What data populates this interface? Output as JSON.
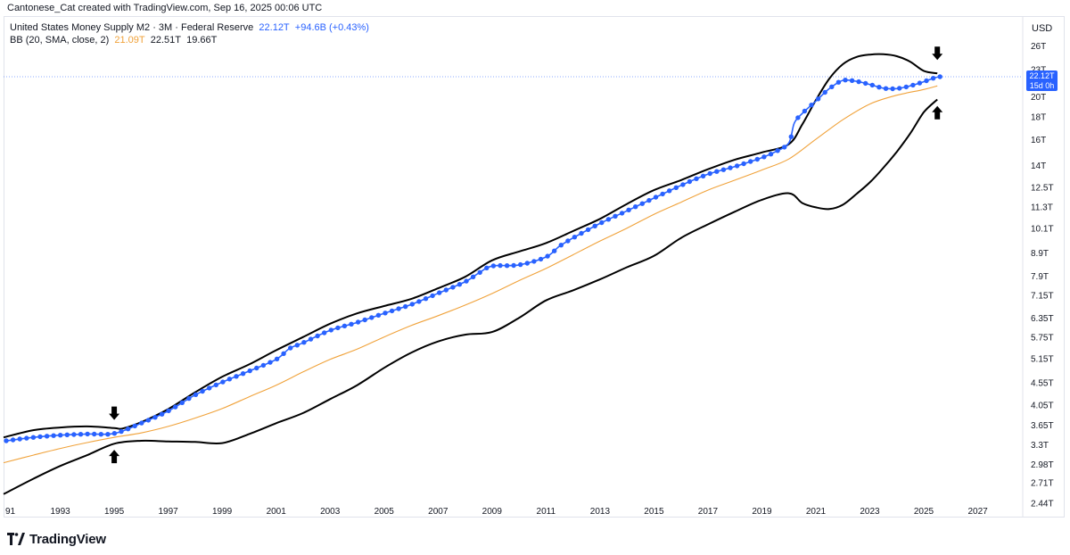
{
  "header": {
    "attribution": "Cantonese_Cat created with TradingView.com, Sep 16, 2025 00:06 UTC"
  },
  "legend": {
    "symbol": "United States Money Supply M2 · 3M · Federal Reserve",
    "last_value": "22.12T",
    "change": "+94.6B (+0.43%)",
    "indicator_name": "BB (20, SMA, close, 2)",
    "basis": "21.09T",
    "upper": "22.51T",
    "lower": "19.66T"
  },
  "price_axis": {
    "currency": "USD",
    "last_price_label": "22.12T",
    "countdown": "15d 0h"
  },
  "brand": {
    "name": "TradingView"
  },
  "colors": {
    "series": "#2962ff",
    "basis": "#f0a23a",
    "bands": "#000000",
    "price_line": "#2962ff"
  },
  "chart_data": {
    "type": "line",
    "log_scale": true,
    "grid": false,
    "xlim": [
      1990.9,
      2028.6
    ],
    "ylim": [
      2.28,
      30.0
    ],
    "x_ticks": [
      "91",
      "1993",
      "1995",
      "1997",
      "1999",
      "2001",
      "2003",
      "2005",
      "2007",
      "2009",
      "2011",
      "2013",
      "2015",
      "2017",
      "2019",
      "2021",
      "2023",
      "2025",
      "2027"
    ],
    "x_tick_years": [
      1991,
      1993,
      1995,
      1997,
      1999,
      2001,
      2003,
      2005,
      2007,
      2009,
      2011,
      2013,
      2015,
      2017,
      2019,
      2021,
      2023,
      2025,
      2027
    ],
    "y_ticks": [
      "26T",
      "23T",
      "20T",
      "18T",
      "16T",
      "14T",
      "12.5T",
      "11.3T",
      "10.1T",
      "8.9T",
      "7.9T",
      "7.15T",
      "6.35T",
      "5.75T",
      "5.15T",
      "4.55T",
      "4.05T",
      "3.65T",
      "3.3T",
      "2.98T",
      "2.71T",
      "2.44T"
    ],
    "y_tick_values": [
      26,
      23,
      20,
      18,
      16,
      14,
      12.5,
      11.3,
      10.1,
      8.9,
      7.9,
      7.15,
      6.35,
      5.75,
      5.15,
      4.55,
      4.05,
      3.65,
      3.3,
      2.98,
      2.71,
      2.44
    ],
    "last_value": 22.12,
    "series": [
      {
        "name": "United States Money Supply M2",
        "role": "price",
        "points": [
          [
            1991.0,
            3.36
          ],
          [
            1992.0,
            3.42
          ],
          [
            1993.0,
            3.46
          ],
          [
            1994.0,
            3.48
          ],
          [
            1995.0,
            3.49
          ],
          [
            1996.0,
            3.68
          ],
          [
            1997.0,
            3.92
          ],
          [
            1998.0,
            4.26
          ],
          [
            1999.0,
            4.55
          ],
          [
            2000.0,
            4.82
          ],
          [
            2001.0,
            5.12
          ],
          [
            2001.5,
            5.42
          ],
          [
            2002.0,
            5.58
          ],
          [
            2003.0,
            5.95
          ],
          [
            2004.0,
            6.2
          ],
          [
            2005.0,
            6.5
          ],
          [
            2006.0,
            6.8
          ],
          [
            2007.0,
            7.21
          ],
          [
            2008.0,
            7.65
          ],
          [
            2008.5,
            8.0
          ],
          [
            2009.0,
            8.3
          ],
          [
            2010.0,
            8.35
          ],
          [
            2011.0,
            8.7
          ],
          [
            2011.5,
            9.2
          ],
          [
            2012.0,
            9.6
          ],
          [
            2013.0,
            10.35
          ],
          [
            2014.0,
            11.05
          ],
          [
            2015.0,
            11.8
          ],
          [
            2016.0,
            12.6
          ],
          [
            2017.0,
            13.35
          ],
          [
            2018.0,
            13.9
          ],
          [
            2019.0,
            14.55
          ],
          [
            2019.5,
            15.0
          ],
          [
            2020.0,
            15.7
          ],
          [
            2020.2,
            17.4
          ],
          [
            2020.5,
            18.3
          ],
          [
            2021.0,
            19.5
          ],
          [
            2021.5,
            20.8
          ],
          [
            2022.0,
            21.7
          ],
          [
            2022.5,
            21.6
          ],
          [
            2023.0,
            21.25
          ],
          [
            2023.5,
            20.85
          ],
          [
            2024.0,
            20.8
          ],
          [
            2024.5,
            21.1
          ],
          [
            2025.0,
            21.55
          ],
          [
            2025.4,
            22.0
          ],
          [
            2025.6,
            22.12
          ]
        ]
      },
      {
        "name": "Upper",
        "role": "upper",
        "points": [
          [
            1990.9,
            3.42
          ],
          [
            1992.0,
            3.55
          ],
          [
            1993.0,
            3.6
          ],
          [
            1994.0,
            3.62
          ],
          [
            1995.0,
            3.59
          ],
          [
            1995.3,
            3.58
          ],
          [
            1996.0,
            3.7
          ],
          [
            1997.0,
            3.96
          ],
          [
            1998.0,
            4.32
          ],
          [
            1999.0,
            4.68
          ],
          [
            2000.0,
            4.99
          ],
          [
            2001.0,
            5.37
          ],
          [
            2002.0,
            5.75
          ],
          [
            2003.0,
            6.16
          ],
          [
            2004.0,
            6.5
          ],
          [
            2005.0,
            6.75
          ],
          [
            2006.0,
            7.0
          ],
          [
            2007.0,
            7.4
          ],
          [
            2008.0,
            7.85
          ],
          [
            2009.0,
            8.55
          ],
          [
            2010.0,
            8.95
          ],
          [
            2011.0,
            9.35
          ],
          [
            2012.0,
            9.95
          ],
          [
            2013.0,
            10.6
          ],
          [
            2014.0,
            11.45
          ],
          [
            2015.0,
            12.3
          ],
          [
            2016.0,
            12.95
          ],
          [
            2017.0,
            13.7
          ],
          [
            2018.0,
            14.4
          ],
          [
            2019.0,
            14.95
          ],
          [
            2020.0,
            15.6
          ],
          [
            2020.5,
            17.3
          ],
          [
            2021.0,
            19.6
          ],
          [
            2021.5,
            21.9
          ],
          [
            2022.0,
            23.6
          ],
          [
            2022.5,
            24.5
          ],
          [
            2023.0,
            24.8
          ],
          [
            2023.5,
            24.85
          ],
          [
            2024.0,
            24.6
          ],
          [
            2024.5,
            23.9
          ],
          [
            2025.0,
            22.8
          ],
          [
            2025.5,
            22.51
          ]
        ]
      },
      {
        "name": "Basis",
        "role": "basis",
        "points": [
          [
            1990.9,
            3.0
          ],
          [
            1992.0,
            3.12
          ],
          [
            1993.0,
            3.23
          ],
          [
            1994.0,
            3.33
          ],
          [
            1995.0,
            3.42
          ],
          [
            1996.0,
            3.5
          ],
          [
            1997.0,
            3.62
          ],
          [
            1998.0,
            3.78
          ],
          [
            1999.0,
            3.97
          ],
          [
            2000.0,
            4.22
          ],
          [
            2001.0,
            4.48
          ],
          [
            2002.0,
            4.8
          ],
          [
            2003.0,
            5.12
          ],
          [
            2004.0,
            5.4
          ],
          [
            2005.0,
            5.75
          ],
          [
            2006.0,
            6.1
          ],
          [
            2007.0,
            6.42
          ],
          [
            2008.0,
            6.78
          ],
          [
            2009.0,
            7.2
          ],
          [
            2010.0,
            7.7
          ],
          [
            2011.0,
            8.2
          ],
          [
            2012.0,
            8.8
          ],
          [
            2013.0,
            9.45
          ],
          [
            2014.0,
            10.1
          ],
          [
            2015.0,
            10.85
          ],
          [
            2016.0,
            11.55
          ],
          [
            2017.0,
            12.3
          ],
          [
            2018.0,
            12.95
          ],
          [
            2019.0,
            13.65
          ],
          [
            2020.0,
            14.45
          ],
          [
            2021.0,
            16.0
          ],
          [
            2022.0,
            17.7
          ],
          [
            2023.0,
            19.2
          ],
          [
            2024.0,
            20.1
          ],
          [
            2025.0,
            20.7
          ],
          [
            2025.5,
            21.09
          ]
        ]
      },
      {
        "name": "Lower",
        "role": "lower",
        "points": [
          [
            1990.9,
            2.55
          ],
          [
            1992.0,
            2.76
          ],
          [
            1993.0,
            2.95
          ],
          [
            1994.0,
            3.12
          ],
          [
            1995.0,
            3.31
          ],
          [
            1996.0,
            3.36
          ],
          [
            1997.0,
            3.35
          ],
          [
            1998.0,
            3.34
          ],
          [
            1999.0,
            3.32
          ],
          [
            2000.0,
            3.48
          ],
          [
            2001.0,
            3.68
          ],
          [
            2002.0,
            3.88
          ],
          [
            2003.0,
            4.17
          ],
          [
            2004.0,
            4.48
          ],
          [
            2005.0,
            4.9
          ],
          [
            2006.0,
            5.3
          ],
          [
            2007.0,
            5.62
          ],
          [
            2008.0,
            5.82
          ],
          [
            2009.0,
            5.9
          ],
          [
            2010.0,
            6.35
          ],
          [
            2011.0,
            6.95
          ],
          [
            2012.0,
            7.32
          ],
          [
            2013.0,
            7.75
          ],
          [
            2014.0,
            8.25
          ],
          [
            2015.0,
            8.75
          ],
          [
            2016.0,
            9.6
          ],
          [
            2017.0,
            10.3
          ],
          [
            2018.0,
            11.0
          ],
          [
            2019.0,
            11.7
          ],
          [
            2020.0,
            12.1
          ],
          [
            2020.5,
            11.5
          ],
          [
            2021.0,
            11.25
          ],
          [
            2021.5,
            11.15
          ],
          [
            2022.0,
            11.4
          ],
          [
            2022.5,
            12.05
          ],
          [
            2023.0,
            12.8
          ],
          [
            2023.5,
            13.8
          ],
          [
            2024.0,
            15.0
          ],
          [
            2024.5,
            16.5
          ],
          [
            2025.0,
            18.4
          ],
          [
            2025.5,
            19.66
          ]
        ]
      }
    ],
    "annotations": [
      {
        "type": "arrow-down",
        "x": 1995.0,
        "y": 3.85
      },
      {
        "type": "arrow-up",
        "x": 1995.0,
        "y": 3.12
      },
      {
        "type": "arrow-down",
        "x": 2025.5,
        "y": 24.8
      },
      {
        "type": "arrow-up",
        "x": 2025.5,
        "y": 18.5
      }
    ]
  }
}
